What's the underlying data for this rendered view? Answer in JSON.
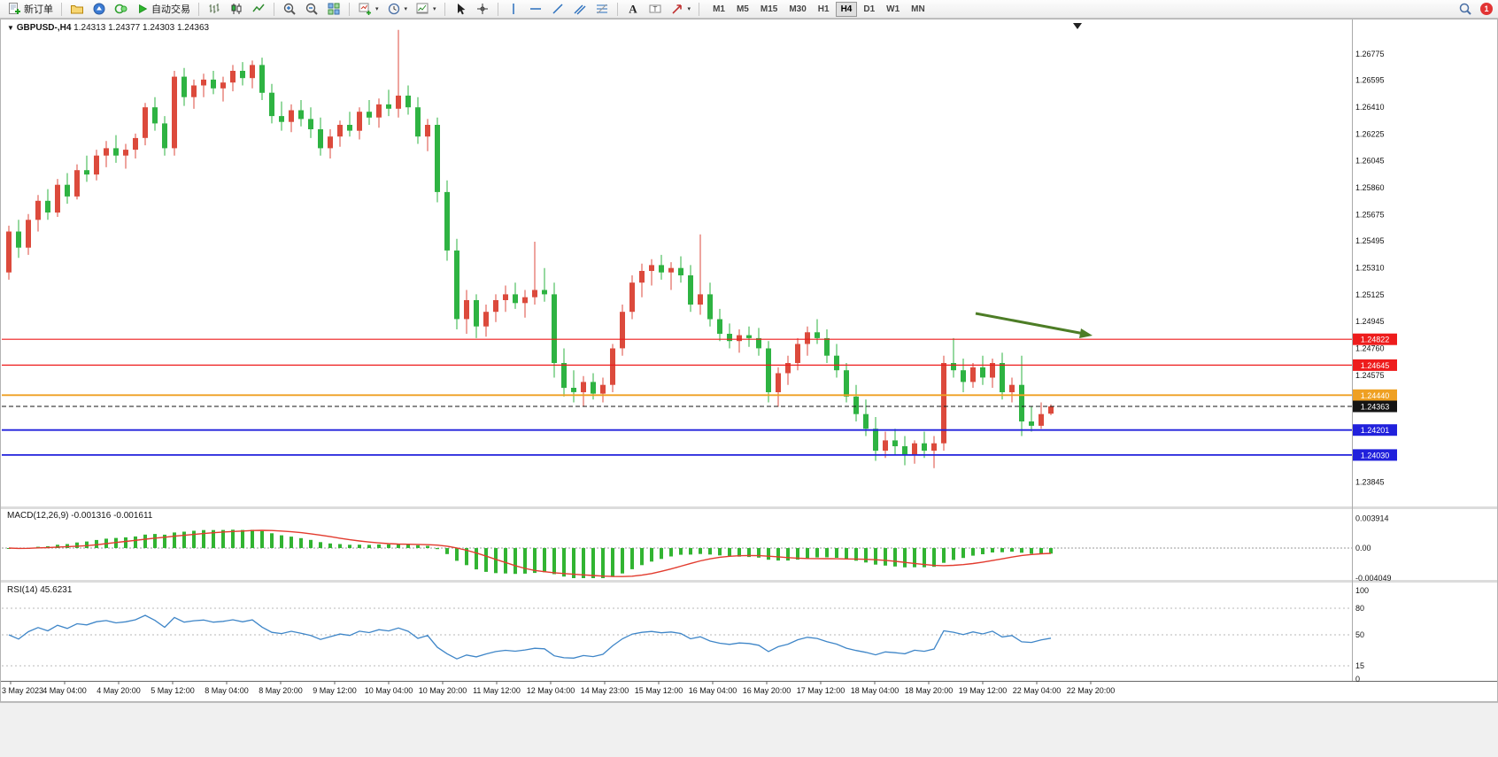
{
  "toolbar": {
    "new_order_label": "新订单",
    "autotrading_label": "自动交易",
    "timeframes": [
      "M1",
      "M5",
      "M15",
      "M30",
      "H1",
      "H4",
      "D1",
      "W1",
      "MN"
    ],
    "active_timeframe": "H4",
    "notification_count": "1"
  },
  "chart": {
    "title": "GBPUSD-,H4",
    "ohlc_display": "1.24313 1.24377 1.24303 1.24363"
  },
  "panes": {
    "macd_label": "MACD(12,26,9)",
    "macd_values": "-0.001316 -0.001611",
    "rsi_label": "RSI(14)",
    "rsi_value": "45.6231"
  },
  "chart_data": {
    "type": "candlestick",
    "symbol": "GBPUSD-",
    "period": "H4",
    "open": 1.24313,
    "high": 1.24377,
    "low": 1.24303,
    "close": 1.24363,
    "up_color": "#dc4a3c",
    "down_color": "#2eb342",
    "macd_color": "#32b432",
    "signal_color": "#e23b2e",
    "rsi_color": "#3f86c8",
    "arrow_color": "#4d7d26",
    "price_axis_labels": [
      "1.26775",
      "1.26595",
      "1.26410",
      "1.26225",
      "1.26045",
      "1.25860",
      "1.25675",
      "1.25495",
      "1.25310",
      "1.25125",
      "1.24945",
      "1.24760",
      "1.24575",
      "1.23845"
    ],
    "levels": [
      {
        "name": "resistance-line-1",
        "price": 1.24822,
        "label": "1.24822",
        "color": "#ee1c1c",
        "width": 1.2,
        "dashed": false
      },
      {
        "name": "resistance-line-2",
        "price": 1.24645,
        "label": "1.24645",
        "color": "#ee1c1c",
        "width": 1.2,
        "dashed": false
      },
      {
        "name": "pivot-line",
        "price": 1.2444,
        "label": "1.24440",
        "color": "#efa022",
        "width": 1.8,
        "dashed": false
      },
      {
        "name": "current-price-line",
        "price": 1.24363,
        "label": "1.24363",
        "color": "#141414",
        "width": 1,
        "dashed": true
      },
      {
        "name": "support-line-1",
        "price": 1.24201,
        "label": "1.24201",
        "color": "#2121dc",
        "width": 1.8,
        "dashed": false
      },
      {
        "name": "support-line-2",
        "price": 1.2403,
        "label": "1.24030",
        "color": "#2121dc",
        "width": 1.8,
        "dashed": false
      }
    ],
    "time_axis_labels": [
      "3 May 2023",
      "4 May 04:00",
      "4 May 20:00",
      "5 May 12:00",
      "8 May 04:00",
      "8 May 20:00",
      "9 May 12:00",
      "10 May 04:00",
      "10 May 20:00",
      "11 May 12:00",
      "12 May 04:00",
      "14 May 23:00",
      "15 May 12:00",
      "16 May 04:00",
      "16 May 20:00",
      "17 May 12:00",
      "18 May 04:00",
      "18 May 20:00",
      "19 May 12:00",
      "22 May 04:00",
      "22 May 20:00"
    ],
    "macd": {
      "params": [
        12,
        26,
        9
      ],
      "axis": [
        "0.003914",
        "0.00",
        "-0.004049"
      ]
    },
    "rsi": {
      "period": 14,
      "axis": [
        "100",
        "80",
        "50",
        "15",
        "0"
      ],
      "levels": [
        80,
        50,
        15
      ]
    },
    "candles": [
      [
        1.2528,
        1.256,
        1.2523,
        1.2556
      ],
      [
        1.2556,
        1.2564,
        1.2538,
        1.2545
      ],
      [
        1.2545,
        1.2568,
        1.254,
        1.2564
      ],
      [
        1.2564,
        1.2581,
        1.2556,
        1.2577
      ],
      [
        1.2577,
        1.2585,
        1.2564,
        1.2569
      ],
      [
        1.2569,
        1.2592,
        1.2566,
        1.2588
      ],
      [
        1.2588,
        1.2596,
        1.2575,
        1.258
      ],
      [
        1.258,
        1.2602,
        1.2578,
        1.2598
      ],
      [
        1.2598,
        1.2608,
        1.259,
        1.2595
      ],
      [
        1.2595,
        1.2612,
        1.2591,
        1.2608
      ],
      [
        1.2608,
        1.2618,
        1.26,
        1.2613
      ],
      [
        1.2613,
        1.2622,
        1.2603,
        1.2608
      ],
      [
        1.2608,
        1.2616,
        1.2599,
        1.2612
      ],
      [
        1.2612,
        1.2623,
        1.2606,
        1.262
      ],
      [
        1.262,
        1.2644,
        1.2615,
        1.2641
      ],
      [
        1.2641,
        1.2648,
        1.2625,
        1.263
      ],
      [
        1.263,
        1.2635,
        1.2608,
        1.2613
      ],
      [
        1.2613,
        1.2666,
        1.2608,
        1.2662
      ],
      [
        1.2662,
        1.2668,
        1.2642,
        1.2648
      ],
      [
        1.2648,
        1.266,
        1.264,
        1.2656
      ],
      [
        1.2656,
        1.2664,
        1.2648,
        1.266
      ],
      [
        1.266,
        1.2666,
        1.265,
        1.2654
      ],
      [
        1.2654,
        1.2662,
        1.2645,
        1.2658
      ],
      [
        1.2658,
        1.267,
        1.2652,
        1.2666
      ],
      [
        1.2666,
        1.2672,
        1.2656,
        1.2661
      ],
      [
        1.2661,
        1.2673,
        1.2654,
        1.267
      ],
      [
        1.267,
        1.2675,
        1.2646,
        1.2651
      ],
      [
        1.2651,
        1.2657,
        1.263,
        1.2635
      ],
      [
        1.2635,
        1.2645,
        1.2625,
        1.2631
      ],
      [
        1.2631,
        1.2643,
        1.2624,
        1.2639
      ],
      [
        1.2639,
        1.2646,
        1.2628,
        1.2633
      ],
      [
        1.2633,
        1.2641,
        1.262,
        1.2626
      ],
      [
        1.2626,
        1.2634,
        1.2608,
        1.2613
      ],
      [
        1.2613,
        1.2626,
        1.2606,
        1.2621
      ],
      [
        1.2621,
        1.2632,
        1.2614,
        1.2629
      ],
      [
        1.2629,
        1.2638,
        1.2621,
        1.2625
      ],
      [
        1.2625,
        1.2641,
        1.2619,
        1.2638
      ],
      [
        1.2638,
        1.2646,
        1.2629,
        1.2634
      ],
      [
        1.2634,
        1.2647,
        1.2627,
        1.2643
      ],
      [
        1.2643,
        1.2653,
        1.2635,
        1.264
      ],
      [
        1.264,
        1.2694,
        1.2634,
        1.2649
      ],
      [
        1.2649,
        1.2656,
        1.2636,
        1.2641
      ],
      [
        1.2641,
        1.2648,
        1.2616,
        1.2621
      ],
      [
        1.2621,
        1.2633,
        1.2611,
        1.2629
      ],
      [
        1.2629,
        1.2634,
        1.2576,
        1.2583
      ],
      [
        1.2583,
        1.2591,
        1.2536,
        1.2543
      ],
      [
        1.2543,
        1.2551,
        1.2489,
        1.2496
      ],
      [
        1.2496,
        1.2516,
        1.2486,
        1.2509
      ],
      [
        1.2509,
        1.2513,
        1.2483,
        1.2491
      ],
      [
        1.2491,
        1.2506,
        1.2484,
        1.2501
      ],
      [
        1.2501,
        1.2513,
        1.2494,
        1.2509
      ],
      [
        1.2509,
        1.2519,
        1.2501,
        1.2513
      ],
      [
        1.2513,
        1.2521,
        1.2503,
        1.2507
      ],
      [
        1.2507,
        1.2516,
        1.2497,
        1.2511
      ],
      [
        1.2511,
        1.2549,
        1.2506,
        1.2516
      ],
      [
        1.2516,
        1.2531,
        1.2508,
        1.2513
      ],
      [
        1.2513,
        1.2521,
        1.2456,
        1.2466
      ],
      [
        1.2466,
        1.2476,
        1.2443,
        1.2449
      ],
      [
        1.2449,
        1.2461,
        1.2439,
        1.2446
      ],
      [
        1.2446,
        1.2457,
        1.2436,
        1.2453
      ],
      [
        1.2453,
        1.2459,
        1.2441,
        1.2445
      ],
      [
        1.2445,
        1.2456,
        1.2439,
        1.2451
      ],
      [
        1.2451,
        1.2479,
        1.2446,
        1.2476
      ],
      [
        1.2476,
        1.2506,
        1.2471,
        1.2501
      ],
      [
        1.2501,
        1.2526,
        1.2496,
        1.2521
      ],
      [
        1.2521,
        1.2534,
        1.2511,
        1.2529
      ],
      [
        1.2529,
        1.2537,
        1.2519,
        1.2533
      ],
      [
        1.2533,
        1.254,
        1.2523,
        1.2528
      ],
      [
        1.2528,
        1.2535,
        1.2516,
        1.2531
      ],
      [
        1.2531,
        1.2539,
        1.2521,
        1.2526
      ],
      [
        1.2526,
        1.2533,
        1.2501,
        1.2506
      ],
      [
        1.2506,
        1.2554,
        1.2499,
        1.2513
      ],
      [
        1.2513,
        1.2521,
        1.2491,
        1.2496
      ],
      [
        1.2496,
        1.2503,
        1.2481,
        1.2486
      ],
      [
        1.2486,
        1.2493,
        1.2476,
        1.2481
      ],
      [
        1.2481,
        1.2489,
        1.2473,
        1.2485
      ],
      [
        1.2485,
        1.2491,
        1.2477,
        1.2483
      ],
      [
        1.2483,
        1.249,
        1.2471,
        1.2476
      ],
      [
        1.2476,
        1.2481,
        1.2439,
        1.2446
      ],
      [
        1.2446,
        1.2463,
        1.2436,
        1.2459
      ],
      [
        1.2459,
        1.2471,
        1.2451,
        1.2466
      ],
      [
        1.2466,
        1.2483,
        1.2461,
        1.2479
      ],
      [
        1.2479,
        1.2491,
        1.2471,
        1.2487
      ],
      [
        1.2487,
        1.2496,
        1.2479,
        1.2483
      ],
      [
        1.2483,
        1.2489,
        1.2466,
        1.2471
      ],
      [
        1.2471,
        1.2479,
        1.2456,
        1.2461
      ],
      [
        1.2461,
        1.2466,
        1.2439,
        1.2443
      ],
      [
        1.2443,
        1.2451,
        1.2426,
        1.2431
      ],
      [
        1.2431,
        1.2441,
        1.2416,
        1.2421
      ],
      [
        1.2421,
        1.2429,
        1.2399,
        1.2406
      ],
      [
        1.2406,
        1.2419,
        1.2401,
        1.2413
      ],
      [
        1.2413,
        1.2421,
        1.2403,
        1.2409
      ],
      [
        1.2409,
        1.2416,
        1.2396,
        1.2403
      ],
      [
        1.2403,
        1.2413,
        1.2397,
        1.2411
      ],
      [
        1.2411,
        1.2419,
        1.2401,
        1.2406
      ],
      [
        1.2406,
        1.2416,
        1.2394,
        1.2411
      ],
      [
        1.2411,
        1.2471,
        1.2406,
        1.2466
      ],
      [
        1.2466,
        1.2483,
        1.2456,
        1.2461
      ],
      [
        1.2461,
        1.2469,
        1.2446,
        1.2453
      ],
      [
        1.2453,
        1.2466,
        1.2449,
        1.2463
      ],
      [
        1.2463,
        1.2471,
        1.2451,
        1.2456
      ],
      [
        1.2456,
        1.2469,
        1.2449,
        1.2466
      ],
      [
        1.2466,
        1.2473,
        1.2441,
        1.2446
      ],
      [
        1.2446,
        1.2456,
        1.2439,
        1.2451
      ],
      [
        1.2451,
        1.2471,
        1.2416,
        1.2426
      ],
      [
        1.2426,
        1.2436,
        1.2419,
        1.2423
      ],
      [
        1.2423,
        1.2439,
        1.2421,
        1.2431
      ],
      [
        1.24313,
        1.24377,
        1.24303,
        1.24363
      ]
    ]
  }
}
